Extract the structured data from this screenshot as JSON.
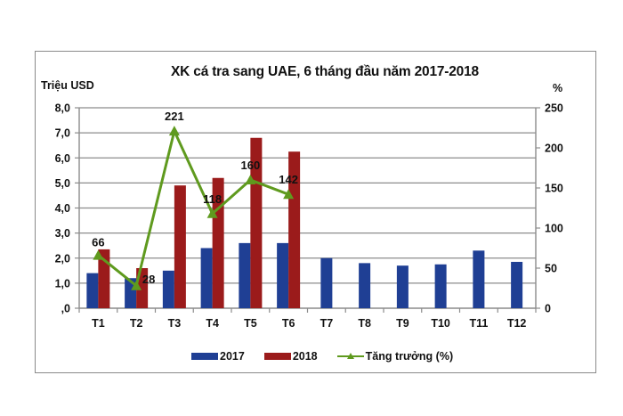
{
  "chart_data": {
    "type": "bar",
    "title": "XK cá tra sang UAE, 6 tháng đầu năm 2017-2018",
    "ylabel": "Triệu USD",
    "ylabel_right": "%",
    "xlabel": "",
    "categories": [
      "T1",
      "T2",
      "T3",
      "T4",
      "T5",
      "T6",
      "T7",
      "T8",
      "T9",
      "T10",
      "T11",
      "T12"
    ],
    "ylim": [
      0,
      8
    ],
    "y_ticks": [
      ",0",
      "1,0",
      "2,0",
      "3,0",
      "4,0",
      "5,0",
      "6,0",
      "7,0",
      "8,0"
    ],
    "y2lim": [
      0,
      250
    ],
    "y2_ticks": [
      "0",
      "50",
      "100",
      "150",
      "200",
      "250"
    ],
    "grid": true,
    "legend_position": "bottom",
    "series": [
      {
        "name": "2017",
        "type": "bar",
        "axis": "left",
        "color": "#1f3f94",
        "values": [
          1.4,
          1.2,
          1.5,
          2.4,
          2.6,
          2.6,
          2.0,
          1.8,
          1.7,
          1.75,
          2.3,
          1.85
        ]
      },
      {
        "name": "2018",
        "type": "bar",
        "axis": "left",
        "color": "#9b1b1b",
        "values": [
          2.35,
          1.6,
          4.9,
          5.2,
          6.8,
          6.25,
          null,
          null,
          null,
          null,
          null,
          null
        ]
      },
      {
        "name": "Tăng trưởng (%)",
        "type": "line",
        "axis": "right",
        "color": "#5f9a1e",
        "marker": "triangle",
        "values": [
          66,
          28,
          221,
          118,
          160,
          142,
          null,
          null,
          null,
          null,
          null,
          null
        ],
        "data_labels": [
          "66",
          "28",
          "221",
          "118",
          "160",
          "142"
        ]
      }
    ]
  },
  "labels": {
    "title": "XK cá tra sang UAE, 6 tháng đầu năm 2017-2018",
    "ylabel_left": "Triệu USD",
    "ylabel_right": "%",
    "legend": [
      "2017",
      "2018",
      "Tăng trưởng (%)"
    ]
  }
}
